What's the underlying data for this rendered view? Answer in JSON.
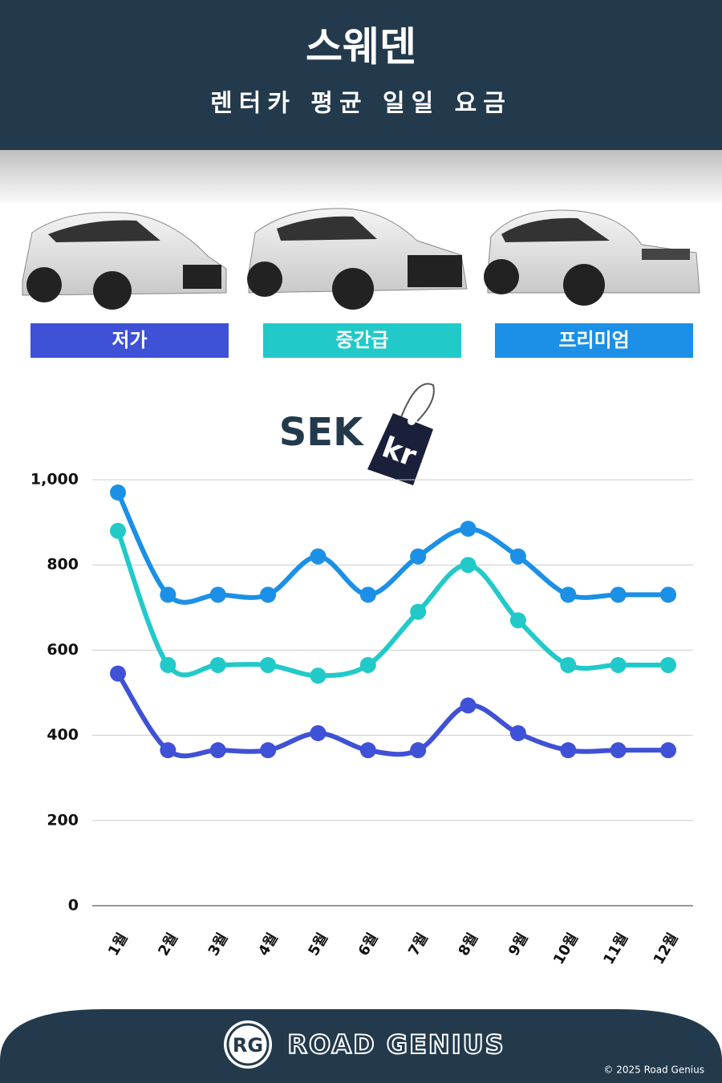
{
  "header": {
    "title": "스웨덴",
    "subtitle": "렌터카 평균 일일 요금"
  },
  "currency": {
    "code": "SEK",
    "symbol": "kr"
  },
  "chart_data": {
    "type": "line",
    "categories": [
      "1월",
      "2월",
      "3월",
      "4월",
      "5월",
      "6월",
      "7월",
      "8월",
      "9월",
      "10월",
      "11월",
      "12월"
    ],
    "series": [
      {
        "name": "저가",
        "color": "#3f51d6",
        "values": [
          545,
          365,
          365,
          365,
          405,
          365,
          365,
          470,
          405,
          365,
          365,
          365
        ]
      },
      {
        "name": "중간급",
        "color": "#22c9c9",
        "values": [
          880,
          565,
          565,
          565,
          540,
          565,
          690,
          800,
          670,
          565,
          565,
          565
        ]
      },
      {
        "name": "프리미엄",
        "color": "#1b90e6",
        "values": [
          970,
          730,
          730,
          730,
          820,
          730,
          820,
          885,
          820,
          730,
          730,
          730
        ]
      }
    ],
    "ylim": [
      0,
      1000
    ],
    "yticks": [
      0,
      200,
      400,
      600,
      800,
      {
        "value": 1000,
        "label": "1,000"
      }
    ],
    "grid": true
  },
  "footer": {
    "logo": "RG",
    "brand": "ROAD GENIUS",
    "copyright": "© 2025 Road Genius"
  }
}
